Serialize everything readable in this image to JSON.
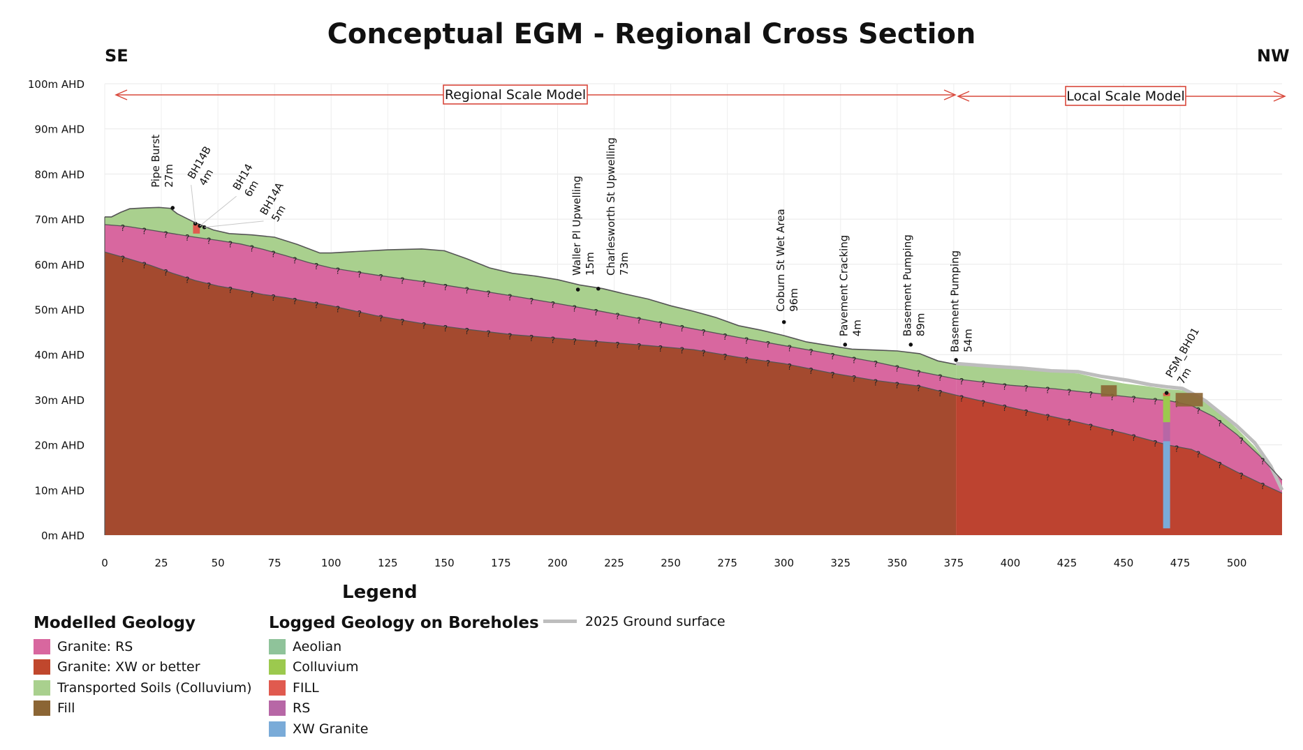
{
  "title": "Conceptual EGM - Regional Cross Section",
  "direction_left": "SE",
  "direction_right": "NW",
  "scale_labels": {
    "regional": "Regional Scale Model",
    "local": "Local Scale Model"
  },
  "colors": {
    "granite_rs": "#d8679f",
    "granite_xw_regional": "#a44a2f",
    "granite_xw_local": "#bd4330",
    "transported_soils": "#a9d08e",
    "fill": "#8b6534",
    "aeolian": "#8fc39a",
    "colluvium": "#9cc94e",
    "fill_logged": "#e05a4f",
    "rs_logged": "#b767a6",
    "xw_granite_logged": "#7aabd8",
    "ground_2025": "#bdbdbd",
    "scale_arrow": "#d9483b"
  },
  "chart_data": {
    "type": "cross-section",
    "x_ticks": [
      0,
      25,
      50,
      75,
      100,
      125,
      150,
      175,
      200,
      225,
      250,
      275,
      300,
      325,
      350,
      375,
      400,
      425,
      450,
      475,
      500
    ],
    "y_ticks": [
      "0m AHD",
      "10m AHD",
      "20m AHD",
      "30m AHD",
      "40m AHD",
      "50m AHD",
      "60m AHD",
      "70m AHD",
      "80m AHD",
      "90m AHD",
      "100m AHD"
    ],
    "xlim": [
      0,
      520
    ],
    "ylim": [
      0,
      100
    ],
    "grid": true,
    "regional_local_boundary": 376,
    "ground_surface": [
      [
        0,
        70.5
      ],
      [
        3,
        70.5
      ],
      [
        7,
        71.5
      ],
      [
        11,
        72.3
      ],
      [
        18,
        72.5
      ],
      [
        24,
        72.6
      ],
      [
        29,
        72.4
      ],
      [
        32,
        71.2
      ],
      [
        40,
        69.2
      ],
      [
        48,
        67.6
      ],
      [
        55,
        66.8
      ],
      [
        65,
        66.5
      ],
      [
        75,
        66.0
      ],
      [
        85,
        64.4
      ],
      [
        95,
        62.5
      ],
      [
        100,
        62.5
      ],
      [
        110,
        62.8
      ],
      [
        125,
        63.2
      ],
      [
        140,
        63.4
      ],
      [
        150,
        63.0
      ],
      [
        160,
        61.2
      ],
      [
        170,
        59.2
      ],
      [
        180,
        58.0
      ],
      [
        190,
        57.4
      ],
      [
        200,
        56.6
      ],
      [
        210,
        55.4
      ],
      [
        220,
        54.6
      ],
      [
        230,
        53.4
      ],
      [
        240,
        52.3
      ],
      [
        250,
        50.8
      ],
      [
        260,
        49.6
      ],
      [
        270,
        48.2
      ],
      [
        280,
        46.4
      ],
      [
        290,
        45.4
      ],
      [
        300,
        44.2
      ],
      [
        310,
        42.8
      ],
      [
        320,
        42.0
      ],
      [
        330,
        41.2
      ],
      [
        340,
        41.0
      ],
      [
        350,
        40.8
      ],
      [
        360,
        40.2
      ],
      [
        368,
        38.6
      ],
      [
        376,
        37.8
      ],
      [
        380,
        37.8
      ],
      [
        392,
        37.2
      ],
      [
        405,
        36.8
      ],
      [
        418,
        36.2
      ],
      [
        430,
        35.8
      ],
      [
        440,
        34.6
      ],
      [
        450,
        33.6
      ],
      [
        460,
        33.0
      ],
      [
        470,
        32.3
      ],
      [
        478,
        32.0
      ],
      [
        485,
        30.0
      ],
      [
        492,
        27.3
      ],
      [
        500,
        23.6
      ],
      [
        508,
        19.5
      ],
      [
        515,
        15.0
      ],
      [
        520,
        11.0
      ]
    ],
    "rs_top": [
      [
        0,
        68.8
      ],
      [
        10,
        68.4
      ],
      [
        20,
        67.6
      ],
      [
        30,
        66.8
      ],
      [
        40,
        66.0
      ],
      [
        50,
        65.3
      ],
      [
        60,
        64.5
      ],
      [
        70,
        63.3
      ],
      [
        80,
        61.9
      ],
      [
        90,
        60.4
      ],
      [
        100,
        59.2
      ],
      [
        120,
        57.6
      ],
      [
        140,
        56.2
      ],
      [
        160,
        54.6
      ],
      [
        180,
        53.0
      ],
      [
        200,
        51.3
      ],
      [
        220,
        49.5
      ],
      [
        240,
        47.6
      ],
      [
        260,
        45.7
      ],
      [
        280,
        43.8
      ],
      [
        300,
        42.0
      ],
      [
        320,
        40.2
      ],
      [
        340,
        38.4
      ],
      [
        360,
        36.2
      ],
      [
        376,
        34.6
      ],
      [
        400,
        33.2
      ],
      [
        420,
        32.4
      ],
      [
        440,
        31.3
      ],
      [
        460,
        30.2
      ],
      [
        470,
        29.8
      ],
      [
        480,
        28.7
      ],
      [
        490,
        26.2
      ],
      [
        500,
        22.3
      ],
      [
        510,
        17.6
      ],
      [
        520,
        12.2
      ]
    ],
    "xw_top": [
      [
        0,
        62.7
      ],
      [
        10,
        61.3
      ],
      [
        20,
        59.8
      ],
      [
        30,
        58.0
      ],
      [
        40,
        56.4
      ],
      [
        50,
        55.2
      ],
      [
        60,
        54.3
      ],
      [
        70,
        53.3
      ],
      [
        80,
        52.6
      ],
      [
        90,
        51.7
      ],
      [
        100,
        50.8
      ],
      [
        120,
        48.6
      ],
      [
        140,
        46.9
      ],
      [
        160,
        45.6
      ],
      [
        180,
        44.4
      ],
      [
        200,
        43.6
      ],
      [
        220,
        42.8
      ],
      [
        240,
        42.0
      ],
      [
        260,
        41.1
      ],
      [
        280,
        39.4
      ],
      [
        300,
        38.0
      ],
      [
        320,
        36.0
      ],
      [
        340,
        34.3
      ],
      [
        360,
        33.0
      ],
      [
        376,
        31.0
      ],
      [
        390,
        29.4
      ],
      [
        410,
        27.2
      ],
      [
        430,
        25.0
      ],
      [
        450,
        22.6
      ],
      [
        470,
        19.9
      ],
      [
        480,
        19.0
      ],
      [
        490,
        16.6
      ],
      [
        500,
        14.0
      ],
      [
        510,
        11.6
      ],
      [
        520,
        9.3
      ]
    ],
    "ground_2025": [
      [
        376,
        38.0
      ],
      [
        392,
        37.4
      ],
      [
        405,
        37.0
      ],
      [
        418,
        36.4
      ],
      [
        430,
        36.2
      ],
      [
        440,
        35.2
      ],
      [
        452,
        34.3
      ],
      [
        462,
        33.3
      ],
      [
        470,
        32.8
      ],
      [
        476,
        32.5
      ],
      [
        481,
        31.2
      ],
      [
        486,
        29.8
      ],
      [
        492,
        27.4
      ],
      [
        500,
        24.2
      ],
      [
        508,
        20.4
      ],
      [
        515,
        15.3
      ],
      [
        520,
        10.0
      ]
    ],
    "fill_patches": [
      {
        "x": [
          440,
          447
        ],
        "top": 33.2,
        "bottom": 30.7
      },
      {
        "x": [
          473,
          485
        ],
        "top": 31.5,
        "bottom": 28.5
      }
    ],
    "borehole_PSM_BH01": {
      "x": 469,
      "intervals": [
        {
          "material": "FILL",
          "top": 31.5,
          "bottom": 30.8
        },
        {
          "material": "Colluvium",
          "top": 30.8,
          "bottom": 25.0
        },
        {
          "material": "RS",
          "top": 25.0,
          "bottom": 20.8
        },
        {
          "material": "XW Granite",
          "top": 20.8,
          "bottom": 1.5
        }
      ]
    },
    "bh14b_fill": {
      "x": [
        39,
        42
      ],
      "top": 68.8,
      "bottom": 66.8
    },
    "annotations": [
      {
        "line1": "Pipe Burst",
        "line2": "27m",
        "x": 30,
        "y": 72.5,
        "angle": -90,
        "label_x": 25,
        "label_y": 77.0,
        "leader": false
      },
      {
        "line1": "BH14B",
        "line2": "4m",
        "x": 40,
        "y": 69.0,
        "angle": -60,
        "label_x": 40,
        "label_y": 78.5,
        "leader": true
      },
      {
        "line1": "BH14",
        "line2": "6m",
        "x": 42,
        "y": 68.5,
        "angle": -60,
        "label_x": 60,
        "label_y": 76.0,
        "leader": true
      },
      {
        "line1": "BH14A",
        "line2": "5m",
        "x": 44,
        "y": 68.2,
        "angle": -60,
        "label_x": 72,
        "label_y": 70.5,
        "leader": true
      },
      {
        "line1": "Waller Pl Upwelling",
        "line2": "15m",
        "x": 209,
        "y": 54.4,
        "angle": -90,
        "label_x": 211,
        "label_y": 57.5,
        "leader": false
      },
      {
        "line1": "Charlesworth St Upwelling",
        "line2": "73m",
        "x": 218,
        "y": 54.6,
        "angle": -90,
        "label_x": 226,
        "label_y": 57.5,
        "leader": false
      },
      {
        "line1": "Coburn St Wet Area",
        "line2": "96m",
        "x": 300,
        "y": 47.2,
        "angle": -90,
        "label_x": 301,
        "label_y": 49.5,
        "leader": false
      },
      {
        "line1": "Pavement Cracking",
        "line2": "4m",
        "x": 327,
        "y": 42.2,
        "angle": -90,
        "label_x": 329,
        "label_y": 44.0,
        "leader": false
      },
      {
        "line1": "Basement Pumping",
        "line2": "89m",
        "x": 356,
        "y": 42.2,
        "angle": -90,
        "label_x": 357,
        "label_y": 44.0,
        "leader": false
      },
      {
        "line1": "Basement Pumping",
        "line2": "54m",
        "x": 376,
        "y": 38.8,
        "angle": -90,
        "label_x": 378,
        "label_y": 40.5,
        "leader": false
      },
      {
        "line1": "PSM_BH01",
        "line2": "7m",
        "x": 469,
        "y": 31.5,
        "angle": -60,
        "label_x": 472,
        "label_y": 34.5,
        "leader": false
      }
    ]
  },
  "legend": {
    "title": "Legend",
    "modelled": {
      "heading": "Modelled Geology",
      "items": [
        {
          "label": "Granite: RS",
          "color": "#d8679f"
        },
        {
          "label": "Granite: XW or better",
          "color": "#c0472d"
        },
        {
          "label": "Transported Soils (Colluvium)",
          "color": "#a9d08e"
        },
        {
          "label": "Fill",
          "color": "#8b6534"
        }
      ]
    },
    "logged": {
      "heading": "Logged Geology on Boreholes",
      "items": [
        {
          "label": "Aeolian",
          "color": "#8fc39a"
        },
        {
          "label": "Colluvium",
          "color": "#9cc94e"
        },
        {
          "label": "FILL",
          "color": "#e05a4f"
        },
        {
          "label": "RS",
          "color": "#b767a6"
        },
        {
          "label": "XW Granite",
          "color": "#7aabd8"
        }
      ]
    },
    "ground_surface": {
      "label": "2025 Ground surface"
    }
  }
}
